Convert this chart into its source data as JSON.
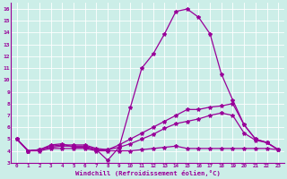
{
  "xlabel": "Windchill (Refroidissement éolien,°C)",
  "background_color": "#cceee8",
  "line_color": "#990099",
  "xlim": [
    -0.5,
    23.5
  ],
  "ylim": [
    3,
    16.5
  ],
  "xticks": [
    0,
    1,
    2,
    3,
    4,
    5,
    6,
    7,
    8,
    9,
    10,
    11,
    12,
    13,
    14,
    15,
    16,
    17,
    18,
    19,
    20,
    21,
    22,
    23
  ],
  "yticks": [
    3,
    4,
    5,
    6,
    7,
    8,
    9,
    10,
    11,
    12,
    13,
    14,
    15,
    16
  ],
  "line1_main": [
    5.0,
    4.0,
    4.1,
    4.5,
    4.6,
    4.3,
    4.3,
    4.1,
    3.2,
    4.3,
    7.7,
    11.0,
    12.2,
    13.9,
    15.8,
    16.0,
    15.3,
    13.9,
    10.5,
    8.3,
    6.2,
    5.0,
    4.7,
    4.1
  ],
  "line2_slow": [
    5.0,
    4.0,
    4.1,
    4.4,
    4.5,
    4.5,
    4.5,
    4.2,
    4.1,
    4.5,
    5.0,
    5.5,
    6.0,
    6.5,
    7.0,
    7.5,
    7.5,
    7.7,
    7.8,
    8.0,
    6.2,
    5.0,
    4.7,
    4.1
  ],
  "line3_flat": [
    5.0,
    4.0,
    4.0,
    4.2,
    4.2,
    4.2,
    4.2,
    4.0,
    4.0,
    4.0,
    4.0,
    4.1,
    4.2,
    4.3,
    4.4,
    4.2,
    4.2,
    4.2,
    4.2,
    4.2,
    4.2,
    4.2,
    4.2,
    4.1
  ],
  "line4_mid": [
    5.0,
    4.0,
    4.1,
    4.3,
    4.4,
    4.4,
    4.4,
    4.1,
    4.1,
    4.3,
    4.6,
    5.0,
    5.4,
    5.9,
    6.3,
    6.5,
    6.7,
    7.0,
    7.2,
    7.0,
    5.5,
    4.9,
    4.7,
    4.1
  ]
}
